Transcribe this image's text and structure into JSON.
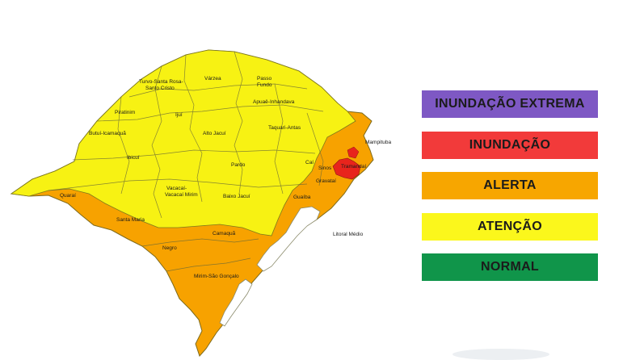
{
  "map": {
    "regions": [
      {
        "id": "varzea",
        "label": "Várzea"
      },
      {
        "id": "passo-fundo",
        "label": "Passo\nFundo"
      },
      {
        "id": "turvo",
        "label": "Turvo-Santa Rosa-\nSanto Cristo"
      },
      {
        "id": "apuae",
        "label": "Apuaê-Inhandava"
      },
      {
        "id": "piratinim",
        "label": "Piratinim"
      },
      {
        "id": "ijui",
        "label": "Ijuí"
      },
      {
        "id": "taquari",
        "label": "Taquari-Antas"
      },
      {
        "id": "butui",
        "label": "Butuí-Icamaquã"
      },
      {
        "id": "alto-jacui",
        "label": "Alto Jacuí"
      },
      {
        "id": "mampituba",
        "label": "Mampituba"
      },
      {
        "id": "ibicui",
        "label": "Ibicuí"
      },
      {
        "id": "cai",
        "label": "Caí"
      },
      {
        "id": "sinos",
        "label": "Sinos"
      },
      {
        "id": "gravatai",
        "label": "Gravataí"
      },
      {
        "id": "tramandai",
        "label": "Tramandaí"
      },
      {
        "id": "pardo",
        "label": "Pardo"
      },
      {
        "id": "vacacai",
        "label": "Vacacaí-\nVacacaí Mirim"
      },
      {
        "id": "baixo-jacui",
        "label": "Baixo Jacuí"
      },
      {
        "id": "guaiba",
        "label": "Guaíba"
      },
      {
        "id": "quarai",
        "label": "Quaraí"
      },
      {
        "id": "santa-maria",
        "label": "Santa Maria"
      },
      {
        "id": "camaqua",
        "label": "Camaquã"
      },
      {
        "id": "litoral-medio",
        "label": "Litoral Médio"
      },
      {
        "id": "negro",
        "label": "Negro"
      },
      {
        "id": "mirim",
        "label": "Mirim-São Gonçalo"
      }
    ],
    "colors": {
      "attention": "#f7f213",
      "alert": "#f7a200",
      "flood": "#e8241c",
      "water": "#ffffff",
      "border": "#6b6b38"
    }
  },
  "legend": {
    "items": [
      {
        "label": "INUNDAÇÃO EXTREMA",
        "bg": "#7e58c4",
        "fg": "#1b1b1b"
      },
      {
        "label": "INUNDAÇÃO",
        "bg": "#f23a3a",
        "fg": "#1b1b1b"
      },
      {
        "label": "ALERTA",
        "bg": "#f7a600",
        "fg": "#1b1b1b"
      },
      {
        "label": "ATENÇÃO",
        "bg": "#fbf71c",
        "fg": "#1b1b1b"
      },
      {
        "label": "NORMAL",
        "bg": "#10954a",
        "fg": "#1b1b1b"
      }
    ]
  }
}
